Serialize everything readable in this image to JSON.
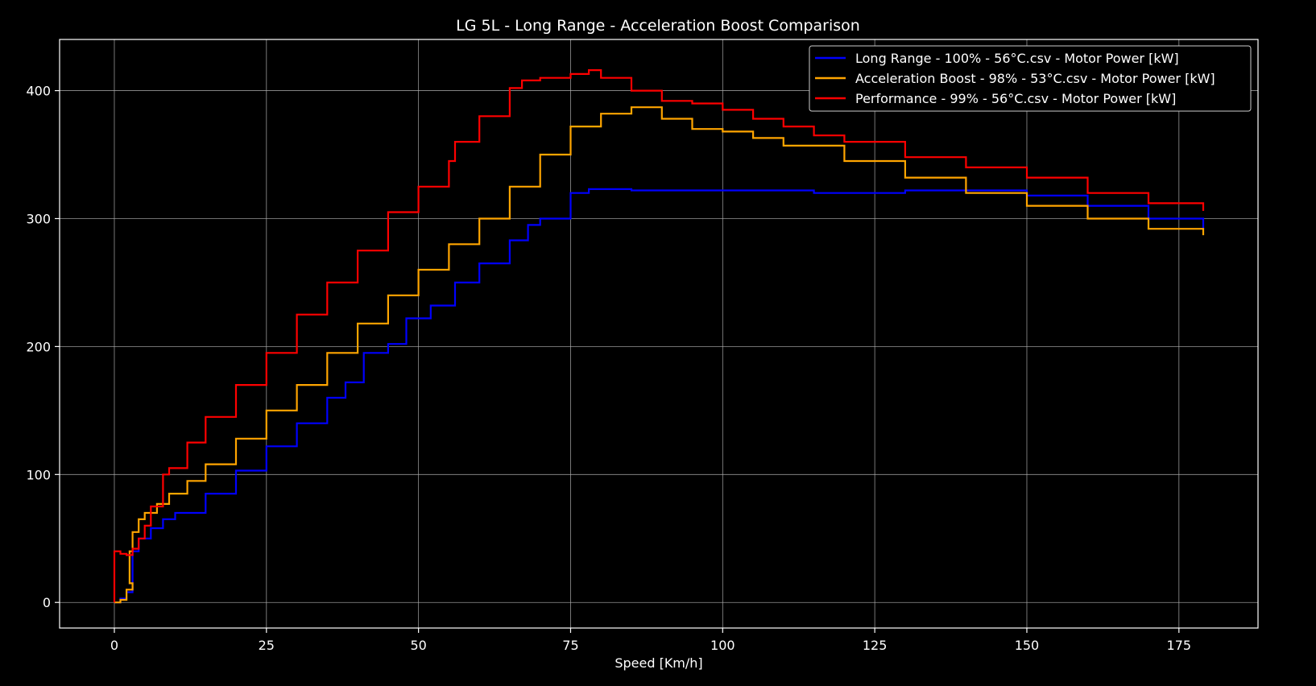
{
  "chart_data": {
    "type": "line",
    "title": "LG 5L - Long Range - Acceleration Boost Comparison",
    "xlabel": "Speed [Km/h]",
    "ylabel": "",
    "xlim": [
      -9,
      188
    ],
    "ylim": [
      -20,
      440
    ],
    "xticks": [
      0,
      25,
      50,
      75,
      100,
      125,
      150,
      175
    ],
    "yticks": [
      0,
      100,
      200,
      300,
      400
    ],
    "grid": true,
    "legend_position": "top-right",
    "series": [
      {
        "name": "Long Range - 100% - 56°C.csv - Motor Power [kW]",
        "color": "#0000ff",
        "x": [
          0,
          1,
          2,
          3,
          4,
          6,
          8,
          10,
          15,
          20,
          25,
          30,
          35,
          38,
          41,
          41,
          45,
          48,
          48,
          52,
          56,
          60,
          65,
          68,
          70,
          75,
          78,
          85,
          100,
          115,
          130,
          140,
          150,
          160,
          170,
          179
        ],
        "y": [
          0,
          3,
          8,
          40,
          50,
          58,
          65,
          70,
          85,
          103,
          122,
          140,
          160,
          172,
          183,
          195,
          202,
          210,
          222,
          232,
          250,
          265,
          283,
          295,
          300,
          320,
          323,
          322,
          322,
          320,
          322,
          322,
          318,
          310,
          300,
          292
        ]
      },
      {
        "name": "Acceleration Boost - 98% - 53°C.csv - Motor Power [kW]",
        "color": "#ffa500",
        "x": [
          0,
          1,
          2,
          3,
          2.5,
          3,
          4,
          5,
          7,
          9,
          12,
          15,
          20,
          25,
          30,
          35,
          40,
          45,
          50,
          55,
          60,
          65,
          70,
          75,
          80,
          85,
          90,
          95,
          100,
          105,
          110,
          120,
          130,
          140,
          150,
          160,
          170,
          179
        ],
        "y": [
          0,
          2,
          10,
          15,
          40,
          55,
          65,
          70,
          77,
          85,
          95,
          108,
          128,
          150,
          170,
          195,
          218,
          240,
          260,
          280,
          300,
          325,
          350,
          372,
          382,
          387,
          378,
          370,
          368,
          363,
          357,
          345,
          332,
          320,
          310,
          300,
          292,
          287
        ]
      },
      {
        "name": "Performance - 99% - 56°C.csv - Motor Power [kW]",
        "color": "#ff0000",
        "x": [
          0,
          0,
          1,
          2,
          3,
          4,
          5,
          6,
          8,
          9,
          12,
          15,
          20,
          25,
          30,
          35,
          40,
          45,
          50,
          55,
          56,
          60,
          65,
          67,
          70,
          75,
          78,
          80,
          85,
          90,
          95,
          100,
          105,
          110,
          115,
          120,
          130,
          140,
          150,
          160,
          170,
          179
        ],
        "y": [
          0,
          40,
          38,
          37,
          42,
          50,
          60,
          75,
          100,
          105,
          125,
          145,
          170,
          195,
          225,
          250,
          275,
          305,
          325,
          345,
          360,
          380,
          402,
          408,
          410,
          413,
          416,
          410,
          400,
          392,
          390,
          385,
          378,
          372,
          365,
          360,
          348,
          340,
          332,
          320,
          312,
          306
        ]
      }
    ]
  }
}
